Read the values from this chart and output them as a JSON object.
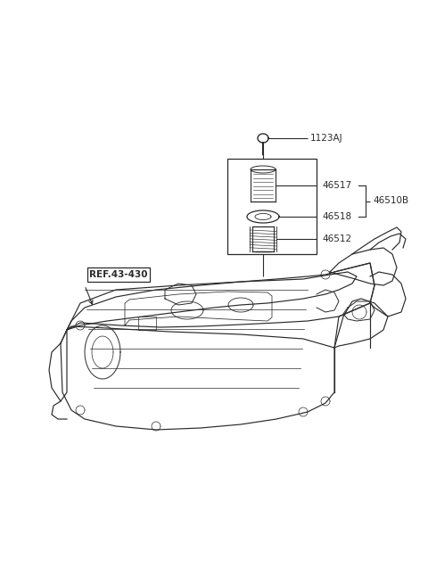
{
  "bg_color": "#ffffff",
  "line_color": "#2a2a2a",
  "fig_width": 4.8,
  "fig_height": 6.55,
  "dpi": 100,
  "parts": [
    {
      "id": "1123AJ",
      "label": "1123AJ"
    },
    {
      "id": "46517",
      "label": "46517"
    },
    {
      "id": "46518",
      "label": "46518"
    },
    {
      "id": "46512",
      "label": "46512"
    },
    {
      "id": "46510B",
      "label": "46510B"
    }
  ],
  "ref_label": "REF.43-430"
}
